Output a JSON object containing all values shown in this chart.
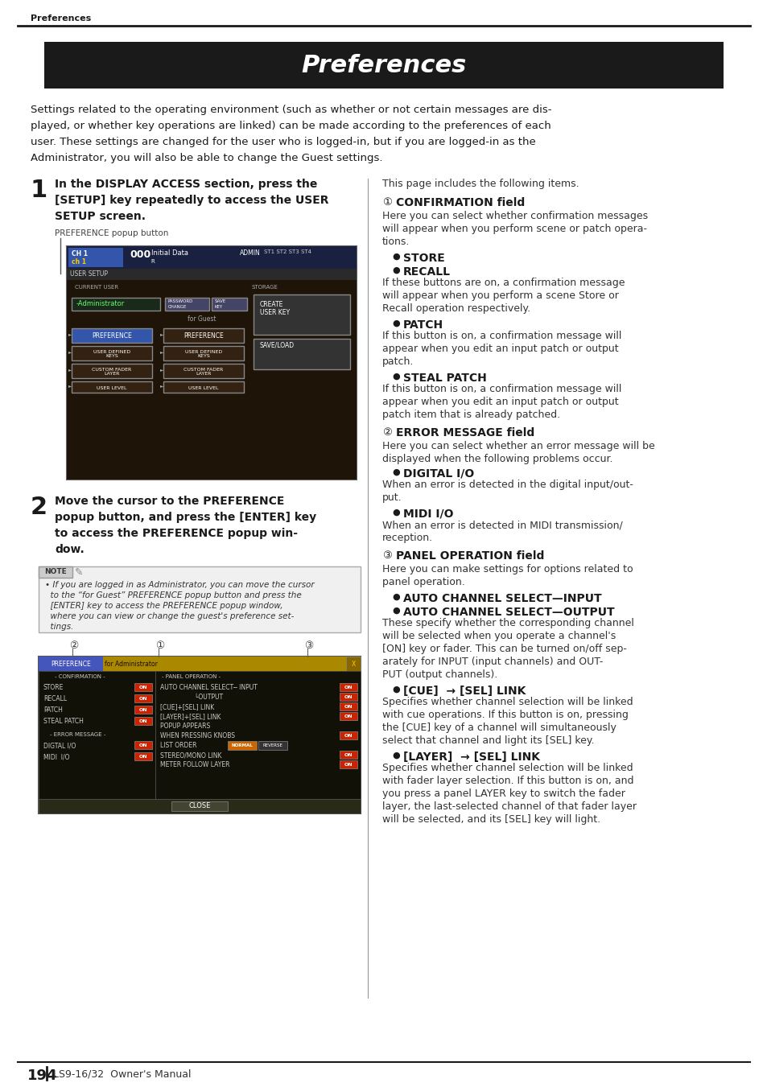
{
  "page_bg": "#ffffff",
  "header_text": "Preferences",
  "header_bg": "#1a1a1a",
  "header_text_color": "#ffffff",
  "top_label": "Preferences",
  "footer_page": "194",
  "footer_text": "LS9-16/32  Owner's Manual",
  "intro_lines": [
    "Settings related to the operating environment (such as whether or not certain messages are dis-",
    "played, or whether key operations are linked) can be made according to the preferences of each",
    "user. These settings are changed for the user who is logged-in, but if you are logged-in as the",
    "Administrator, you will also be able to change the Guest settings."
  ],
  "right_intro": "This page includes the following items.",
  "pref_popup_label": "PREFERENCE popup button",
  "note_lines": [
    "• If you are logged in as Administrator, you can move the cursor",
    "  to the “for Guest” PREFERENCE popup button and press the",
    "  [ENTER] key to access the PREFERENCE popup window,",
    "  where you can view or change the guest's preference set-",
    "  tings."
  ]
}
